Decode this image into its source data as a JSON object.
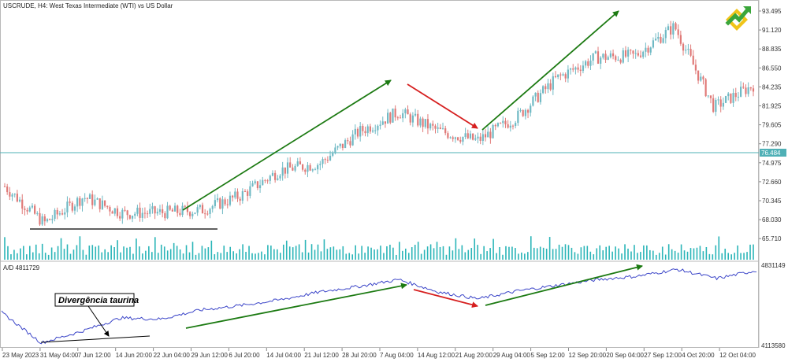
{
  "header": {
    "symbol_line": "USCRUDE, H4:  West Texas Intermediate (WTI) vs US Dollar",
    "indicator_line": "A/D 4811729"
  },
  "price_axis": {
    "ticks": [
      "93.495",
      "91.120",
      "88.835",
      "86.550",
      "84.235",
      "81.925",
      "79.605",
      "77.290",
      "74.975",
      "72.660",
      "70.345",
      "68.030",
      "65.710"
    ],
    "current_price_label": "76.484"
  },
  "indicator_axis": {
    "ticks": [
      "4831149",
      "4113580"
    ]
  },
  "time_axis": {
    "ticks": [
      "23 May 2023",
      "31 May 04:00",
      "7 Jun 12:00",
      "14 Jun 20:00",
      "22 Jun 04:00",
      "29 Jun 12:00",
      "6 Jul 20:00",
      "14 Jul 04:00",
      "21 Jul 12:00",
      "28 Jul 20:00",
      "7 Aug 04:00",
      "14 Aug 12:00",
      "21 Aug 20:00",
      "29 Aug 04:00",
      "5 Sep 12:00",
      "12 Sep 20:00",
      "20 Sep 04:00",
      "27 Sep 12:00",
      "4 Oct 20:00",
      "12 Oct 04:00"
    ]
  },
  "annotation": {
    "label": "Divergência taurina"
  },
  "colors": {
    "bull_candle": "#6fb9c4",
    "bear_candle": "#e07a78",
    "volume": "#2bb5b8",
    "ad_line": "#3b45c8",
    "horizontal_level": "#4fb0b6",
    "up_arrow": "#1c7a12",
    "down_arrow": "#d61f1f",
    "support_line": "#000000",
    "logo_green": "#3aa63a",
    "logo_yellow": "#f0c419"
  },
  "chart_data": [
    {
      "type": "candlestick",
      "title": "USCRUDE, H4:  West Texas Intermediate (WTI) vs US Dollar",
      "x": [
        "23 May 2023",
        "31 May 04:00",
        "7 Jun 12:00",
        "14 Jun 20:00",
        "22 Jun 04:00",
        "29 Jun 12:00",
        "6 Jul 20:00",
        "14 Jul 04:00",
        "21 Jul 12:00",
        "28 Jul 20:00",
        "7 Aug 04:00",
        "14 Aug 12:00",
        "21 Aug 20:00",
        "29 Aug 04:00",
        "5 Sep 12:00",
        "12 Sep 20:00",
        "20 Sep 04:00",
        "27 Sep 12:00",
        "4 Oct 20:00",
        "12 Oct 04:00"
      ],
      "close": [
        73.5,
        69.0,
        72.2,
        70.2,
        70.3,
        70.6,
        72.4,
        75.5,
        76.3,
        80.2,
        82.6,
        80.3,
        79.1,
        82.0,
        86.7,
        89.3,
        89.5,
        93.1,
        83.2,
        85.9
      ],
      "price_ylim": [
        64.9,
        94.8
      ],
      "horizontal_level": 76.484,
      "grid": false
    },
    {
      "type": "line",
      "title": "A/D 4811729",
      "x": [
        "23 May 2023",
        "31 May 04:00",
        "7 Jun 12:00",
        "14 Jun 20:00",
        "22 Jun 04:00",
        "29 Jun 12:00",
        "6 Jul 20:00",
        "14 Jul 04:00",
        "21 Jul 12:00",
        "28 Jul 20:00",
        "7 Aug 04:00",
        "14 Aug 12:00",
        "21 Aug 20:00",
        "29 Aug 04:00",
        "5 Sep 12:00",
        "12 Sep 20:00",
        "20 Sep 04:00",
        "27 Sep 12:00",
        "4 Oct 20:00",
        "12 Oct 04:00"
      ],
      "values": [
        4400000,
        4130000,
        4230000,
        4350000,
        4340000,
        4420000,
        4460000,
        4510000,
        4580000,
        4630000,
        4690000,
        4580000,
        4520000,
        4590000,
        4640000,
        4690000,
        4720000,
        4780000,
        4700000,
        4770000
      ],
      "ylim": [
        4113580,
        4831149
      ]
    }
  ]
}
